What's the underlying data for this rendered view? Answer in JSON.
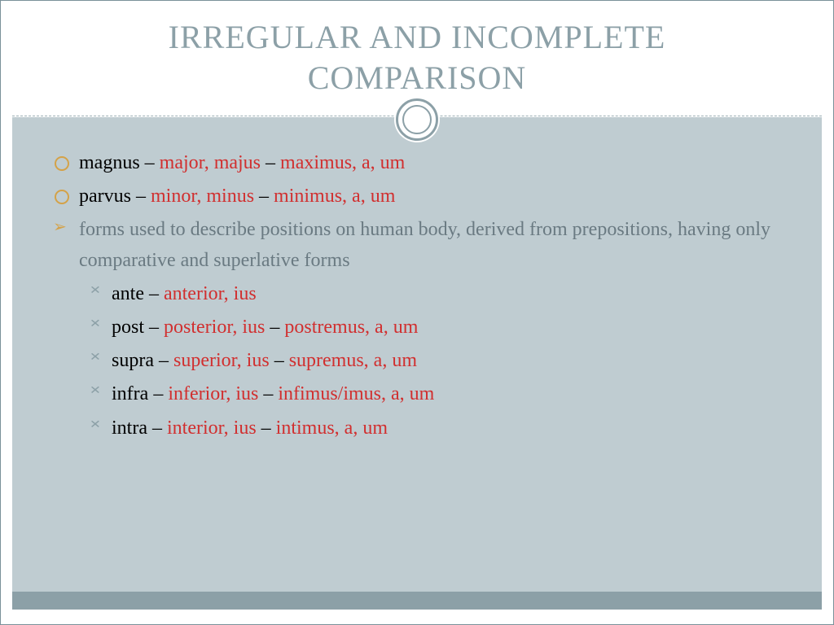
{
  "colors": {
    "title": "#8ca0a7",
    "accent_red": "#d12f2f",
    "body_gray": "#6a7a82",
    "bullet_gold": "#d4a248",
    "content_bg": "#bfccd1",
    "footer_bar": "#8ca0a7",
    "page_bg": "#ffffff"
  },
  "typography": {
    "title_fontsize": 40,
    "body_fontsize": 24,
    "font_family": "Georgia"
  },
  "title_line1": "IRREGULAR  AND INCOMPLETE",
  "title_line2": "COMPARISON",
  "rows": [
    {
      "base": "magnus",
      "comp": "major, majus",
      "sup": "maximus, a, um"
    },
    {
      "base": "parvus",
      "comp": "minor, minus",
      "sup": "minimus, a, um"
    }
  ],
  "note": "forms used to describe positions on human body, derived from prepositions, having only comparative and superlative forms",
  "subs": [
    {
      "base": "ante",
      "comp": "anterior, ius",
      "sup": ""
    },
    {
      "base": "post",
      "comp": "posterior, ius",
      "sup": "postremus, a, um"
    },
    {
      "base": "supra",
      "comp": "superior, ius",
      "sup": "supremus, a, um"
    },
    {
      "base": "infra",
      "comp": "inferior, ius",
      "sup": "infimus/imus, a, um"
    },
    {
      "base": "intra",
      "comp": "interior, ius",
      "sup": "intimus, a, um"
    }
  ],
  "sep": " – "
}
